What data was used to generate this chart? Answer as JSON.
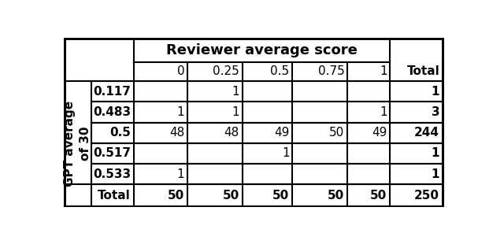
{
  "reviewer_header": "Reviewer average score",
  "row_label_main": "GPT average\nof 30",
  "row_labels": [
    "0.117",
    "0.483",
    "0.5",
    "0.517",
    "0.533"
  ],
  "col_headers": [
    "0",
    "0.25",
    "0.5",
    "0.75",
    "1",
    "Total"
  ],
  "table_data": [
    [
      "",
      "1",
      "",
      "",
      "",
      "1"
    ],
    [
      "1",
      "1",
      "",
      "",
      "1",
      "3"
    ],
    [
      "48",
      "48",
      "49",
      "50",
      "49",
      "244"
    ],
    [
      "",
      "",
      "1",
      "",
      "",
      "1"
    ],
    [
      "1",
      "",
      "",
      "",
      "",
      "1"
    ],
    [
      "50",
      "50",
      "50",
      "50",
      "50",
      "250"
    ]
  ],
  "bg_color": "#ffffff",
  "font_size": 11,
  "header_font_size": 13
}
